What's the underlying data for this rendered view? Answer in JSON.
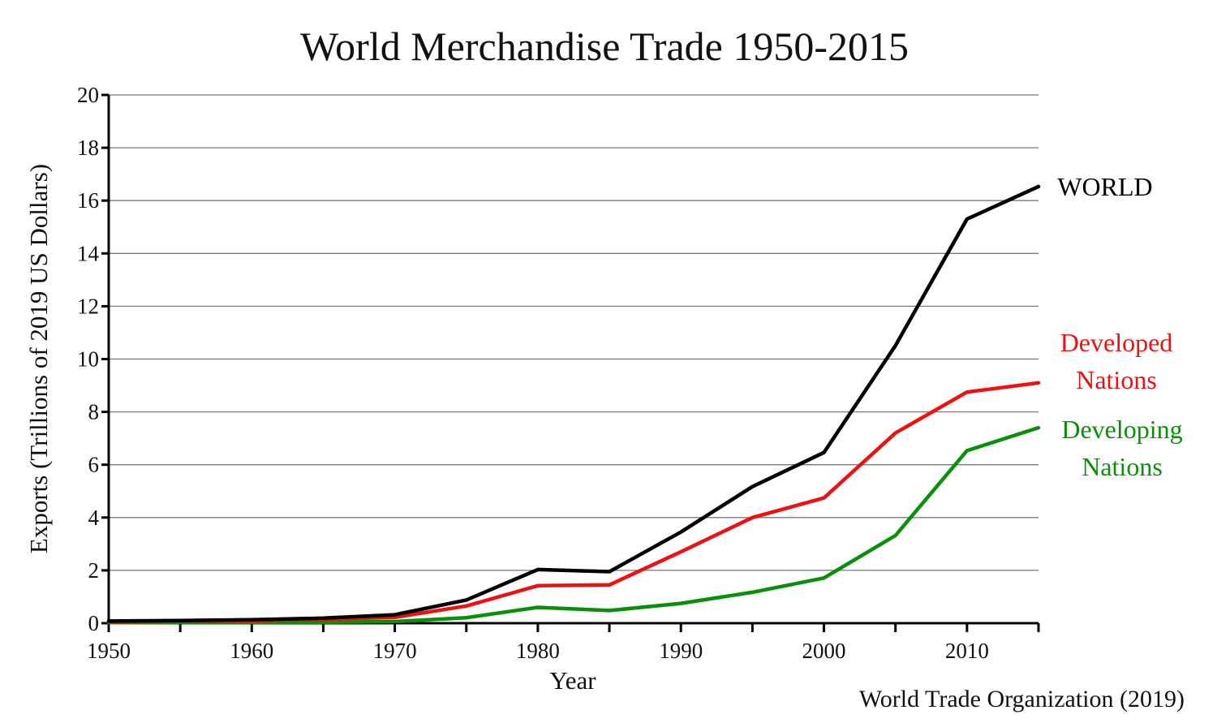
{
  "chart_data": {
    "type": "line",
    "title": "World Merchandise Trade 1950-2015",
    "xlabel": "Year",
    "ylabel": "Exports (Trillions of 2019 US Dollars)",
    "source": "World Trade Organization (2019)",
    "xlim": [
      1950,
      2015
    ],
    "ylim": [
      0,
      20
    ],
    "x_ticks": [
      1950,
      1960,
      1970,
      1980,
      1990,
      2000,
      2010
    ],
    "x_tick_step_minor": 5,
    "y_ticks": [
      0,
      2,
      4,
      6,
      8,
      10,
      12,
      14,
      16,
      18,
      20
    ],
    "grid": true,
    "x": [
      1950,
      1955,
      1960,
      1965,
      1970,
      1975,
      1980,
      1985,
      1990,
      1995,
      2000,
      2005,
      2010,
      2015
    ],
    "series": [
      {
        "name": "WORLD",
        "label_lines": [
          "WORLD"
        ],
        "color": "#000000",
        "values": [
          0.08,
          0.1,
          0.13,
          0.19,
          0.32,
          0.88,
          2.03,
          1.95,
          3.45,
          5.17,
          6.46,
          10.51,
          15.3,
          16.53
        ]
      },
      {
        "name": "Developed Nations",
        "label_lines": [
          "Developed",
          "Nations"
        ],
        "color": "#ee1111",
        "values": [
          0.05,
          0.07,
          0.1,
          0.14,
          0.22,
          0.65,
          1.42,
          1.45,
          2.7,
          4.0,
          4.74,
          7.2,
          8.75,
          9.1
        ]
      },
      {
        "name": "Developing Nations",
        "label_lines": [
          "Developing",
          "Nations"
        ],
        "color": "#0a8f0a",
        "values": [
          0.02,
          0.03,
          0.03,
          0.04,
          0.06,
          0.21,
          0.6,
          0.48,
          0.75,
          1.17,
          1.71,
          3.32,
          6.53,
          7.4
        ]
      }
    ]
  }
}
